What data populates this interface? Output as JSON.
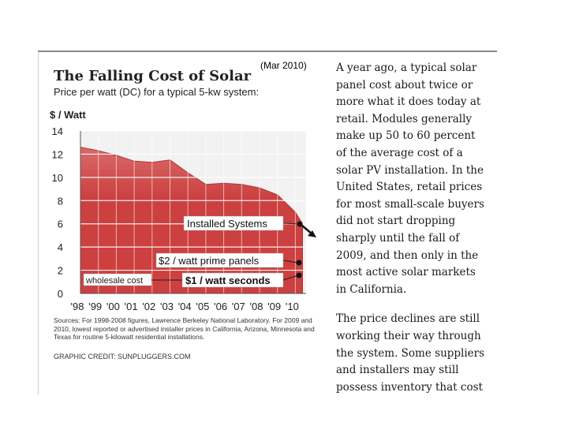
{
  "chart_data": {
    "type": "area",
    "title": "The Falling Cost of Solar",
    "date_note": "(Mar 2010)",
    "subtitle": "Price per watt (DC) for a typical 5-kw system:",
    "ylabel": "$ / Watt",
    "ylim": [
      0,
      14
    ],
    "yticks": [
      "0",
      "2",
      "4",
      "6",
      "8",
      "10",
      "12",
      "14"
    ],
    "ytick_values": [
      0,
      2,
      4,
      6,
      8,
      10,
      12,
      14
    ],
    "categories": [
      "'98",
      "'99",
      "'00",
      "'01",
      "'02",
      "'03",
      "'04",
      "'05",
      "'06",
      "'07",
      "'08",
      "'09",
      "'10"
    ],
    "series": [
      {
        "name": "Installed Systems",
        "x": [
          1998,
          1999,
          2000,
          2001,
          2002,
          2003,
          2004,
          2005,
          2006,
          2007,
          2008,
          2009,
          2010,
          2010.4
        ],
        "values": [
          12.6,
          12.3,
          11.9,
          11.4,
          11.3,
          11.5,
          10.4,
          9.4,
          9.5,
          9.4,
          9.1,
          8.5,
          7.0,
          6.0
        ]
      }
    ],
    "annotations": {
      "installed": "Installed Systems",
      "prime": "$2 / watt prime panels",
      "seconds": "$1 / watt seconds",
      "wholesale": "wholesale cost"
    },
    "sources": "Sources: For 1998-2008 figures, Lawrence Berkeley National Laboratory. For 2009 and 2010, lowest reported or advertised installer prices in California, Arizona, Minnesota and Texas for routine 5-kilowatt residential installations.",
    "credit": "GRAPHIC CREDIT: SUNPLUGGERS.COM",
    "colors": {
      "fill": "#cc4040",
      "fill_top": "#d96a6a",
      "panel": "#f2f2f2",
      "grid": "#ffffff",
      "label_box": "#ffffff"
    }
  },
  "article": {
    "p1": "A year ago, a typical solar panel cost about twice or more what it does today at retail. Modules generally make up 50 to 60 percent of the average cost of a solar PV installation. In the United States, retail prices for most small-scale buyers did not start dropping sharply until the fall of 2009, and then only in the most active solar markets in California.",
    "p2": "The price declines are still working their way through the system. Some suppliers and installers may still possess inventory that cost"
  }
}
